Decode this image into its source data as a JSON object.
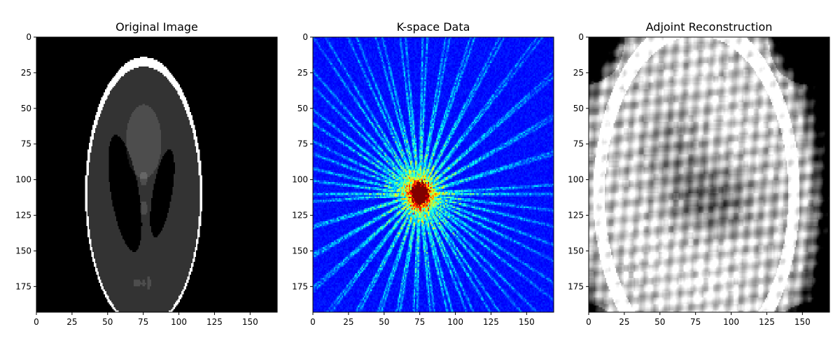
{
  "chart_data": [
    {
      "type": "heatmap",
      "title": "Original Image",
      "colormap": "gray",
      "image_shape": [
        193,
        169
      ],
      "xlim": [
        0,
        169
      ],
      "ylim": [
        193,
        0
      ],
      "xticks": [
        0,
        25,
        50,
        75,
        100,
        125,
        150
      ],
      "yticks": [
        0,
        25,
        50,
        75,
        100,
        125,
        150,
        175
      ],
      "content": "Shepp-Logan phantom"
    },
    {
      "type": "heatmap",
      "title": "K-space Data",
      "colormap": "jet",
      "image_shape": [
        193,
        169
      ],
      "xlim": [
        0,
        169
      ],
      "ylim": [
        193,
        0
      ],
      "xticks": [
        0,
        25,
        50,
        75,
        100,
        125,
        150
      ],
      "yticks": [
        0,
        25,
        50,
        75,
        100,
        125,
        150,
        175
      ],
      "content": "radial k-space samples, peak near center (85, 96)"
    },
    {
      "type": "heatmap",
      "title": "Adjoint Reconstruction",
      "colormap": "gray",
      "image_shape": [
        193,
        169
      ],
      "xlim": [
        0,
        169
      ],
      "ylim": [
        193,
        0
      ],
      "xticks": [
        0,
        25,
        50,
        75,
        100,
        125,
        150
      ],
      "yticks": [
        0,
        25,
        50,
        75,
        100,
        125,
        150,
        175
      ],
      "content": "streaky adjoint (back-projection) reconstruction"
    }
  ]
}
